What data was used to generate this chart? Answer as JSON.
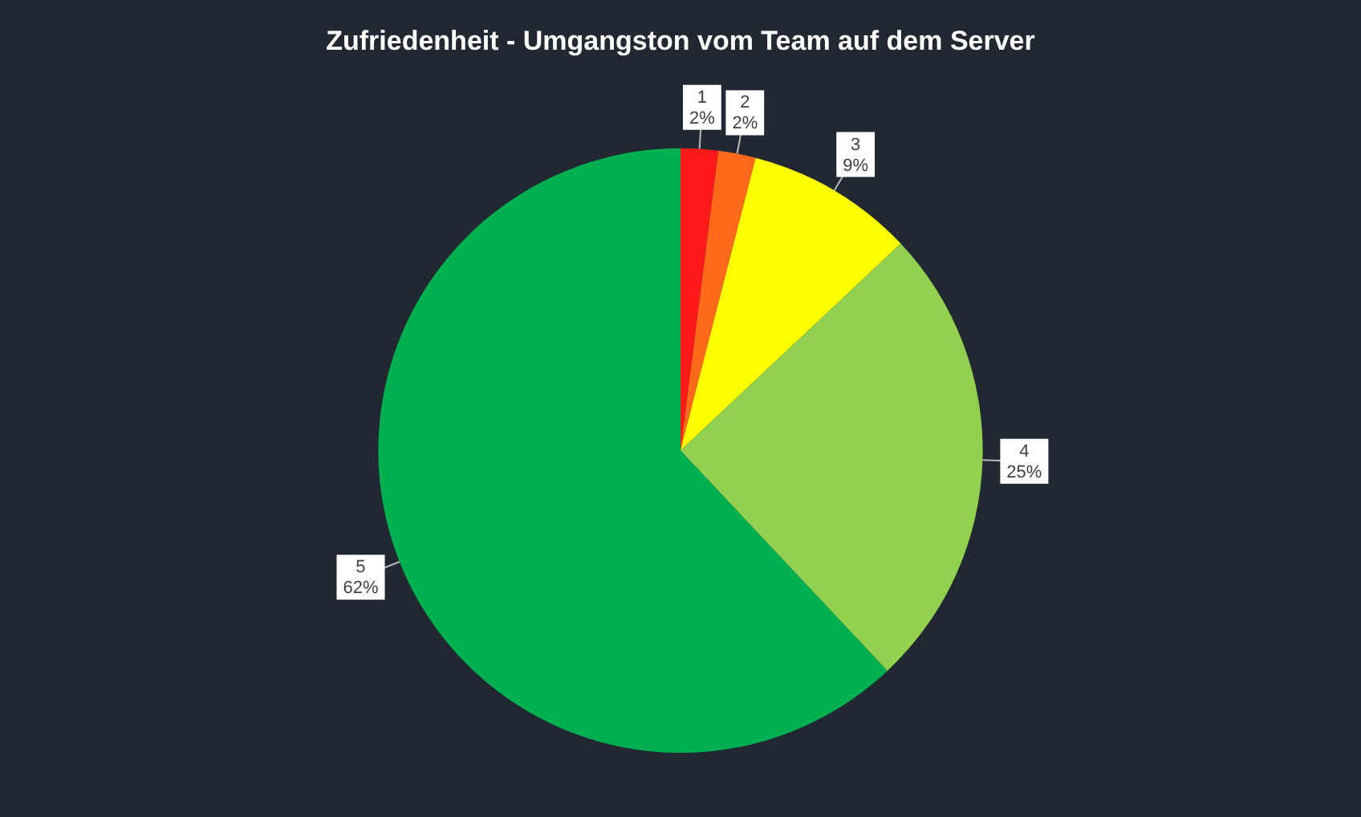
{
  "chart_data": {
    "type": "pie",
    "title": "Zufriedenheit - Umgangston vom Team auf dem Server",
    "categories": [
      "1",
      "2",
      "3",
      "4",
      "5"
    ],
    "values": [
      2,
      2,
      9,
      25,
      62
    ],
    "colors": [
      "#ff1a1a",
      "#ff6a1a",
      "#ffff00",
      "#92d050",
      "#00b050"
    ],
    "value_labels": [
      "2%",
      "2%",
      "9%",
      "25%",
      "62%"
    ],
    "legend": false
  }
}
